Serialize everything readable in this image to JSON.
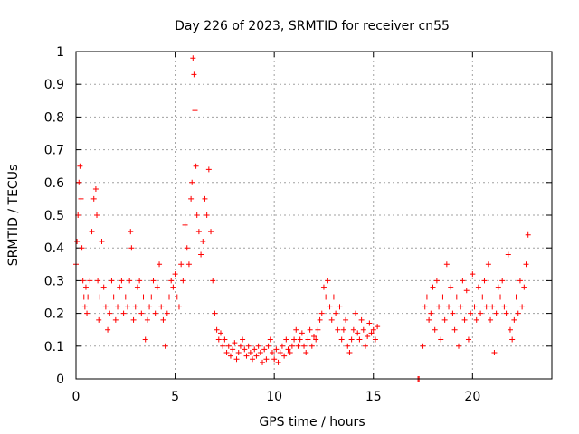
{
  "chart_data": {
    "type": "scatter",
    "title": "Day 226 of 2023, SRMTID for receiver cn55",
    "xlabel": "GPS time / hours",
    "ylabel": "SRMTID / TECUs",
    "xlim": [
      0,
      24
    ],
    "ylim": [
      0,
      1
    ],
    "x_ticks": [
      0,
      5,
      10,
      15,
      20
    ],
    "y_ticks": [
      0,
      0.1,
      0.2,
      0.3,
      0.4,
      0.5,
      0.6,
      0.7,
      0.8,
      0.9,
      1
    ],
    "x_tick_labels": [
      "0",
      "5",
      "10",
      "15",
      "20"
    ],
    "y_tick_labels": [
      "0",
      "0.1",
      "0.2",
      "0.3",
      "0.4",
      "0.5",
      "0.6",
      "0.7",
      "0.8",
      "0.9",
      "1"
    ],
    "grid": true,
    "marker": "+",
    "color": "#ff0000",
    "series": [
      {
        "name": "SRMTID",
        "x": [
          0.0,
          0.05,
          0.1,
          0.15,
          0.2,
          0.25,
          0.3,
          0.35,
          0.4,
          0.45,
          0.5,
          0.55,
          0.6,
          0.7,
          0.8,
          0.9,
          1.0,
          1.05,
          1.1,
          1.15,
          1.2,
          1.3,
          1.4,
          1.5,
          1.6,
          1.7,
          1.8,
          1.9,
          2.0,
          2.1,
          2.2,
          2.3,
          2.4,
          2.5,
          2.6,
          2.7,
          2.75,
          2.8,
          2.9,
          3.0,
          3.1,
          3.2,
          3.3,
          3.4,
          3.5,
          3.6,
          3.7,
          3.8,
          3.9,
          4.0,
          4.1,
          4.2,
          4.3,
          4.4,
          4.5,
          4.6,
          4.7,
          4.8,
          4.9,
          5.0,
          5.1,
          5.2,
          5.3,
          5.4,
          5.5,
          5.6,
          5.7,
          5.8,
          5.85,
          5.9,
          5.95,
          6.0,
          6.05,
          6.1,
          6.2,
          6.3,
          6.4,
          6.5,
          6.6,
          6.7,
          6.8,
          6.9,
          7.0,
          7.1,
          7.2,
          7.3,
          7.4,
          7.5,
          7.6,
          7.7,
          7.8,
          7.9,
          8.0,
          8.1,
          8.2,
          8.3,
          8.4,
          8.5,
          8.6,
          8.7,
          8.8,
          8.9,
          9.0,
          9.1,
          9.2,
          9.3,
          9.4,
          9.5,
          9.6,
          9.7,
          9.8,
          9.9,
          10.0,
          10.1,
          10.2,
          10.3,
          10.4,
          10.5,
          10.6,
          10.7,
          10.8,
          10.9,
          11.0,
          11.1,
          11.2,
          11.3,
          11.4,
          11.5,
          11.6,
          11.7,
          11.8,
          11.9,
          12.0,
          12.1,
          12.2,
          12.3,
          12.4,
          12.5,
          12.6,
          12.7,
          12.8,
          12.9,
          13.0,
          13.1,
          13.2,
          13.3,
          13.4,
          13.5,
          13.6,
          13.7,
          13.8,
          13.9,
          14.0,
          14.1,
          14.2,
          14.3,
          14.4,
          14.5,
          14.6,
          14.7,
          14.8,
          14.9,
          15.0,
          15.1,
          15.2,
          17.25,
          17.3,
          17.5,
          17.6,
          17.7,
          17.8,
          17.9,
          18.0,
          18.1,
          18.2,
          18.3,
          18.4,
          18.5,
          18.6,
          18.7,
          18.8,
          18.9,
          19.0,
          19.1,
          19.2,
          19.3,
          19.4,
          19.5,
          19.6,
          19.7,
          19.8,
          19.9,
          20.0,
          20.1,
          20.2,
          20.3,
          20.4,
          20.5,
          20.6,
          20.7,
          20.8,
          20.9,
          21.0,
          21.1,
          21.2,
          21.3,
          21.4,
          21.5,
          21.6,
          21.7,
          21.8,
          21.9,
          22.0,
          22.1,
          22.2,
          22.3,
          22.4,
          22.5,
          22.6,
          22.7,
          22.8
        ],
        "y": [
          0.35,
          0.42,
          0.5,
          0.6,
          0.65,
          0.55,
          0.4,
          0.3,
          0.25,
          0.22,
          0.28,
          0.2,
          0.25,
          0.3,
          0.45,
          0.55,
          0.58,
          0.5,
          0.3,
          0.18,
          0.25,
          0.42,
          0.28,
          0.22,
          0.15,
          0.2,
          0.3,
          0.25,
          0.18,
          0.22,
          0.28,
          0.3,
          0.2,
          0.25,
          0.22,
          0.3,
          0.45,
          0.4,
          0.18,
          0.22,
          0.28,
          0.3,
          0.2,
          0.25,
          0.12,
          0.18,
          0.22,
          0.25,
          0.3,
          0.2,
          0.28,
          0.35,
          0.22,
          0.18,
          0.1,
          0.2,
          0.25,
          0.3,
          0.28,
          0.32,
          0.25,
          0.22,
          0.35,
          0.3,
          0.47,
          0.4,
          0.35,
          0.55,
          0.6,
          0.98,
          0.93,
          0.82,
          0.65,
          0.5,
          0.45,
          0.38,
          0.42,
          0.55,
          0.5,
          0.64,
          0.45,
          0.3,
          0.2,
          0.15,
          0.12,
          0.14,
          0.1,
          0.12,
          0.08,
          0.1,
          0.07,
          0.09,
          0.11,
          0.06,
          0.08,
          0.1,
          0.12,
          0.09,
          0.07,
          0.1,
          0.08,
          0.06,
          0.09,
          0.07,
          0.1,
          0.08,
          0.05,
          0.09,
          0.06,
          0.1,
          0.12,
          0.08,
          0.06,
          0.09,
          0.05,
          0.08,
          0.1,
          0.07,
          0.12,
          0.09,
          0.08,
          0.1,
          0.12,
          0.15,
          0.1,
          0.12,
          0.14,
          0.1,
          0.08,
          0.12,
          0.15,
          0.1,
          0.13,
          0.12,
          0.15,
          0.18,
          0.2,
          0.28,
          0.25,
          0.3,
          0.22,
          0.18,
          0.25,
          0.2,
          0.15,
          0.22,
          0.12,
          0.15,
          0.18,
          0.1,
          0.08,
          0.12,
          0.15,
          0.2,
          0.14,
          0.12,
          0.18,
          0.15,
          0.1,
          0.13,
          0.17,
          0.14,
          0.15,
          0.12,
          0.16,
          0.0,
          0.0,
          0.1,
          0.22,
          0.25,
          0.18,
          0.2,
          0.28,
          0.15,
          0.3,
          0.22,
          0.12,
          0.25,
          0.18,
          0.35,
          0.22,
          0.28,
          0.2,
          0.15,
          0.25,
          0.1,
          0.22,
          0.3,
          0.18,
          0.27,
          0.12,
          0.2,
          0.32,
          0.22,
          0.18,
          0.28,
          0.2,
          0.25,
          0.3,
          0.22,
          0.35,
          0.18,
          0.22,
          0.08,
          0.2,
          0.28,
          0.25,
          0.3,
          0.22,
          0.2,
          0.38,
          0.15,
          0.12,
          0.18,
          0.25,
          0.2,
          0.3,
          0.22,
          0.28,
          0.35,
          0.44
        ]
      }
    ]
  }
}
